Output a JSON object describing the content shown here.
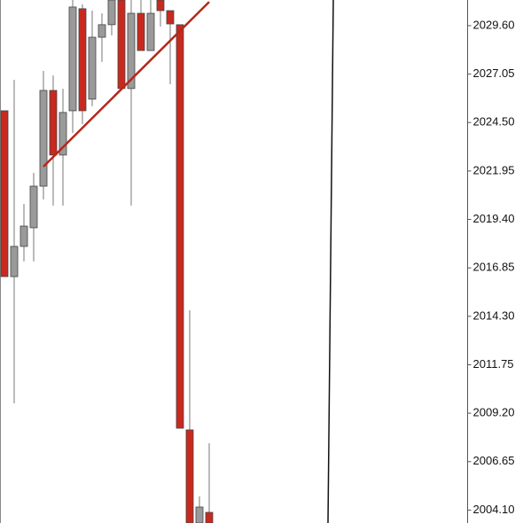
{
  "chart_data": {
    "type": "candlestick",
    "open": [
      2025.12,
      2016.39,
      2017.98,
      2018.96,
      2021.15,
      2026.19,
      2022.79,
      2025.12,
      2030.49,
      2025.73,
      2028.99,
      2029.65,
      2030.95,
      2026.29,
      2030.25,
      2028.29,
      2030.95,
      2030.39,
      2029.65,
      2008.32,
      2003.42,
      2003.98
    ],
    "high": [
      2025.12,
      2026.75,
      2020.22,
      2021.85,
      2027.22,
      2026.98,
      2026.28,
      2030.95,
      2030.72,
      2030.39,
      2030.25,
      2030.95,
      2030.95,
      2030.95,
      2030.95,
      2030.95,
      2030.95,
      2030.39,
      2029.65,
      2014.62,
      2004.82,
      2007.62
    ],
    "low": [
      2016.39,
      2009.72,
      2017.19,
      2017.19,
      2020.45,
      2020.13,
      2020.13,
      2023.95,
      2024.42,
      2025.36,
      2027.69,
      2029.09,
      2026.29,
      2020.13,
      2028.29,
      2028.29,
      2029.55,
      2026.52,
      2008.41,
      2003.42,
      2003.42,
      2003.42
    ],
    "close": [
      2016.39,
      2017.98,
      2019.05,
      2021.15,
      2026.19,
      2022.79,
      2025.03,
      2030.58,
      2025.12,
      2028.99,
      2029.65,
      2030.95,
      2026.29,
      2030.25,
      2028.29,
      2030.25,
      2030.39,
      2029.69,
      2008.41,
      2003.42,
      2004.26,
      2003.42
    ],
    "up_color": "#9a9a9a",
    "down_color": "#c8291f",
    "trendline": {
      "color": "#b5281c",
      "start": [
        4,
        2022.18
      ],
      "end": [
        21,
        2030.85
      ]
    },
    "ylim": [
      2003.42,
      2030.95
    ],
    "yticks": [
      {
        "value": 2004.1,
        "label": "2004.10"
      },
      {
        "value": 2006.65,
        "label": "2006.65"
      },
      {
        "value": 2009.2,
        "label": "2009.20"
      },
      {
        "value": 2011.75,
        "label": "2011.75"
      },
      {
        "value": 2014.3,
        "label": "2014.30"
      },
      {
        "value": 2016.85,
        "label": "2016.85"
      },
      {
        "value": 2019.4,
        "label": "2019.40"
      },
      {
        "value": 2021.95,
        "label": "2021.95"
      },
      {
        "value": 2024.5,
        "label": "2024.50"
      },
      {
        "value": 2027.05,
        "label": "2027.05"
      },
      {
        "value": 2029.6,
        "label": "2029.60"
      }
    ]
  }
}
